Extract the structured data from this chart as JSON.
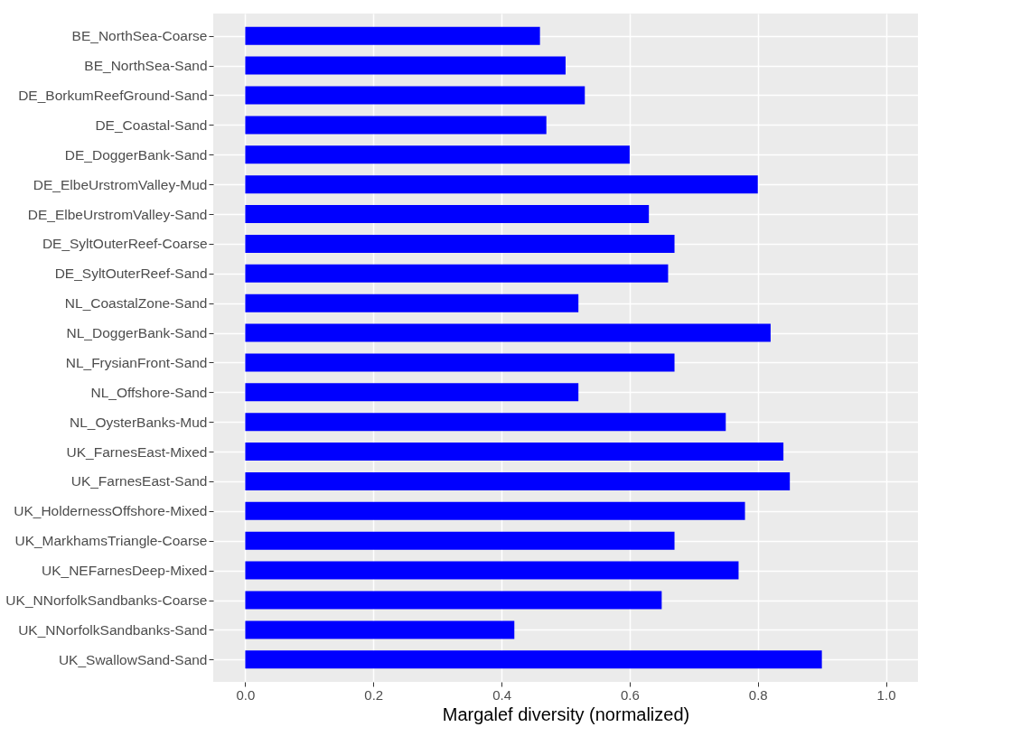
{
  "chart_data": {
    "type": "bar",
    "orientation": "horizontal",
    "xlabel": "Margalef diversity (normalized)",
    "categories": [
      "BE_NorthSea-Coarse",
      "BE_NorthSea-Sand",
      "DE_BorkumReefGround-Sand",
      "DE_Coastal-Sand",
      "DE_DoggerBank-Sand",
      "DE_ElbeUrstromValley-Mud",
      "DE_ElbeUrstromValley-Sand",
      "DE_SyltOuterReef-Coarse",
      "DE_SyltOuterReef-Sand",
      "NL_CoastalZone-Sand",
      "NL_DoggerBank-Sand",
      "NL_FrysianFront-Sand",
      "NL_Offshore-Sand",
      "NL_OysterBanks-Mud",
      "UK_FarnesEast-Mixed",
      "UK_FarnesEast-Sand",
      "UK_HoldernessOffshore-Mixed",
      "UK_MarkhamsTriangle-Coarse",
      "UK_NEFarnesDeep-Mixed",
      "UK_NNorfolkSandbanks-Coarse",
      "UK_NNorfolkSandbanks-Sand",
      "UK_SwallowSand-Sand"
    ],
    "values": [
      0.46,
      0.5,
      0.53,
      0.47,
      0.6,
      0.8,
      0.63,
      0.67,
      0.66,
      0.52,
      0.82,
      0.67,
      0.52,
      0.75,
      0.84,
      0.85,
      0.78,
      0.67,
      0.77,
      0.65,
      0.42,
      0.9
    ],
    "color": "#0000ff",
    "xlim": [
      -0.05,
      1.05
    ],
    "xticks": [
      {
        "value": 0,
        "label": "0.0"
      },
      0.2,
      0.4,
      0.6,
      0.8,
      {
        "value": 1,
        "label": "1.0"
      }
    ],
    "grid": true
  }
}
